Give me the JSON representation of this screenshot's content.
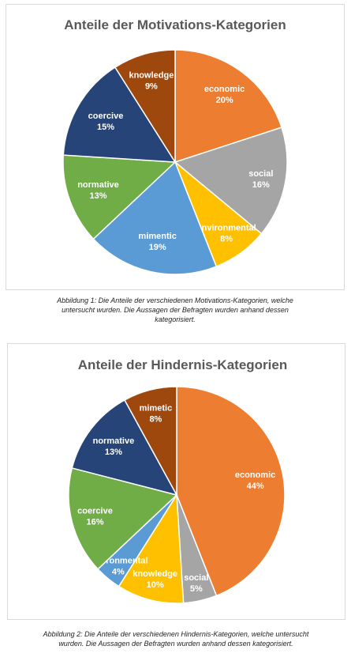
{
  "chart_data": [
    {
      "type": "pie",
      "title": "Anteile der Motivations-Kategorien",
      "slices": [
        {
          "label": "economic",
          "value": 20,
          "display": "20%",
          "color": "#ED7D31"
        },
        {
          "label": "social",
          "value": 16,
          "display": "16%",
          "color": "#A5A5A5"
        },
        {
          "label": "environmental",
          "value": 8,
          "display": "8%",
          "color": "#FFC000"
        },
        {
          "label": "mimentic",
          "value": 19,
          "display": "19%",
          "color": "#5B9BD5"
        },
        {
          "label": "normative",
          "value": 13,
          "display": "13%",
          "color": "#70AD47"
        },
        {
          "label": "coercive",
          "value": 15,
          "display": "15%",
          "color": "#264478"
        },
        {
          "label": "knowledge",
          "value": 9,
          "display": "9%",
          "color": "#9E480E"
        }
      ]
    },
    {
      "type": "pie",
      "title": "Anteile der Hindernis-Kategorien",
      "slices": [
        {
          "label": "economic",
          "value": 44,
          "display": "44%",
          "color": "#ED7D31"
        },
        {
          "label": "social",
          "value": 5,
          "display": "5%",
          "color": "#A5A5A5"
        },
        {
          "label": "knowledge",
          "value": 10,
          "display": "10%",
          "color": "#FFC000"
        },
        {
          "label": "environmental",
          "value": 4,
          "display": "4%",
          "color": "#5B9BD5"
        },
        {
          "label": "coercive",
          "value": 16,
          "display": "16%",
          "color": "#70AD47"
        },
        {
          "label": "normative",
          "value": 13,
          "display": "13%",
          "color": "#264478"
        },
        {
          "label": "mimetic",
          "value": 8,
          "display": "8%",
          "color": "#9E480E"
        }
      ]
    }
  ],
  "captions": [
    "Abbildung 1: Die Anteile der verschiedenen Motivations-Kategorien, welche untersucht wurden. Die Aussagen der Befragten wurden anhand dessen kategorisiert.",
    "Abbildung 2: Die Anteile der verschiedenen Hindernis-Kategorien, welche untersucht wurden. Die Aussagen der Befragten wurden anhand dessen kategorisiert."
  ]
}
